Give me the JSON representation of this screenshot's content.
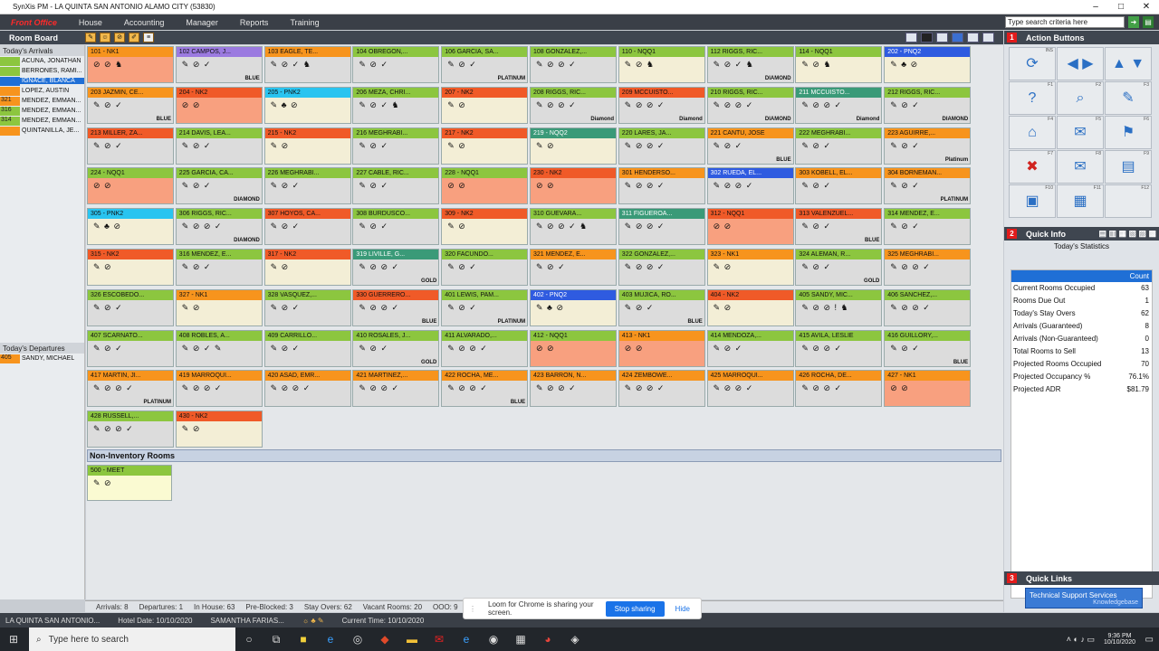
{
  "window": {
    "title": "SynXis PM - LA QUINTA SAN ANTONIO ALAMO CITY (53830)"
  },
  "menu": [
    "Front Office",
    "House",
    "Accounting",
    "Manager",
    "Reports",
    "Training"
  ],
  "search": {
    "placeholder": "Type search criteria here"
  },
  "room_board": {
    "label": "Room Board"
  },
  "arrivals": {
    "label": "Today's Arrivals",
    "items": [
      {
        "code": "",
        "name": "ACUÑA, JONATHAN",
        "color": "#8cc63f"
      },
      {
        "code": "",
        "name": "BERRONES, RAMI...",
        "color": "#8cc63f"
      },
      {
        "code": "",
        "name": "IGNACE, BLANCA",
        "color": "#1f6fd6"
      },
      {
        "code": "",
        "name": "LOPEZ, AUSTIN",
        "color": "#f7941d"
      },
      {
        "code": "321",
        "name": "MENDEZ, EMMAN...",
        "color": "#f7941d"
      },
      {
        "code": "316",
        "name": "MENDEZ, EMMAN...",
        "color": "#8cc63f"
      },
      {
        "code": "314",
        "name": "MENDEZ, EMMAN...",
        "color": "#8cc63f"
      },
      {
        "code": "",
        "name": "QUINTANILLA, JE...",
        "color": "#f7941d"
      }
    ]
  },
  "departures": {
    "label": "Today's Departures",
    "items": [
      {
        "code": "405",
        "name": "SANDY, MICHAEL"
      }
    ]
  },
  "rooms": [
    {
      "h": "101 - NK1",
      "hc": "orange",
      "bc": "bsalmon",
      "icons": "⊘ ⊘ ♞",
      "t": ""
    },
    {
      "h": "102   CAMPOS, J...",
      "hc": "purple",
      "bc": "bgray",
      "icons": "✎ ⊘ ✓",
      "t": "BLUE"
    },
    {
      "h": "103   EAGLE, TE...",
      "hc": "orange",
      "bc": "bgray",
      "icons": "✎ ⊘ ✓ ♞",
      "t": ""
    },
    {
      "h": "104   OBREGON,...",
      "hc": "green",
      "bc": "bgray",
      "icons": "✎ ⊘ ✓",
      "t": ""
    },
    {
      "h": "106   GARCIA, SA...",
      "hc": "green",
      "bc": "bgray",
      "icons": "✎ ⊘ ✓",
      "t": "PLATINUM"
    },
    {
      "h": "108   GONZALEZ,...",
      "hc": "green",
      "bc": "bgray",
      "icons": "✎ ⊘ ⊘ ✓",
      "t": ""
    },
    {
      "h": "110 - NQQ1",
      "hc": "green",
      "bc": "bcream",
      "icons": "✎ ⊘ ♞",
      "t": ""
    },
    {
      "h": "112   RIGGS, RIC...",
      "hc": "green",
      "bc": "bgray",
      "icons": "✎ ⊘ ✓ ♞",
      "t": "DIAMOND"
    },
    {
      "h": "114 - NQQ1",
      "hc": "green",
      "bc": "bcream",
      "icons": "✎ ⊘ ♞",
      "t": ""
    },
    {
      "h": "202 - PNQ2",
      "hc": "blue",
      "bc": "bcream",
      "icons": "✎ ♣ ⊘",
      "t": ""
    },
    {
      "h": "203   JAZMIN, CE...",
      "hc": "orange",
      "bc": "bgray",
      "icons": "✎ ⊘ ✓",
      "t": "BLUE"
    },
    {
      "h": "204 - NK2",
      "hc": "red",
      "bc": "bsalmon",
      "icons": "⊘ ⊘",
      "t": ""
    },
    {
      "h": "205 - PNK2",
      "hc": "cyan",
      "bc": "bcream",
      "icons": "✎ ♣ ⊘",
      "t": ""
    },
    {
      "h": "206   MEZA, CHRI...",
      "hc": "green",
      "bc": "bgray",
      "icons": "✎ ⊘ ✓ ♞",
      "t": ""
    },
    {
      "h": "207 - NK2",
      "hc": "red",
      "bc": "bcream",
      "icons": "✎ ⊘",
      "t": ""
    },
    {
      "h": "208   RIGGS, RIC...",
      "hc": "green",
      "bc": "bgray",
      "icons": "✎ ⊘ ⊘ ✓",
      "t": "Diamond"
    },
    {
      "h": "209   MCCUISTO...",
      "hc": "red",
      "bc": "bgray",
      "icons": "✎ ⊘ ⊘ ✓",
      "t": "Diamond"
    },
    {
      "h": "210   RIGGS, RIC...",
      "hc": "green",
      "bc": "bgray",
      "icons": "✎ ⊘ ⊘ ✓",
      "t": "DIAMOND"
    },
    {
      "h": "211   MCCUISTO...",
      "hc": "teal",
      "bc": "bgray",
      "icons": "✎ ⊘ ⊘ ✓",
      "t": "Diamond"
    },
    {
      "h": "212   RIGGS, RIC...",
      "hc": "green",
      "bc": "bgray",
      "icons": "✎ ⊘ ✓",
      "t": "DIAMOND"
    },
    {
      "h": "213   MILLER, ZA...",
      "hc": "red",
      "bc": "bgray",
      "icons": "✎ ⊘ ✓",
      "t": ""
    },
    {
      "h": "214   DAVIS, LEA...",
      "hc": "green",
      "bc": "bgray",
      "icons": "✎ ⊘ ✓",
      "t": ""
    },
    {
      "h": "215 - NK2",
      "hc": "red",
      "bc": "bcream",
      "icons": "✎ ⊘",
      "t": ""
    },
    {
      "h": "216   MEGHRABI...",
      "hc": "green",
      "bc": "bgray",
      "icons": "✎ ⊘ ✓",
      "t": ""
    },
    {
      "h": "217 - NK2",
      "hc": "red",
      "bc": "bcream",
      "icons": "✎ ⊘",
      "t": ""
    },
    {
      "h": "219 - NQQ2",
      "hc": "teal",
      "bc": "bcream",
      "icons": "✎ ⊘",
      "t": ""
    },
    {
      "h": "220   LARES, JA...",
      "hc": "green",
      "bc": "bgray",
      "icons": "✎ ⊘ ⊘ ✓",
      "t": ""
    },
    {
      "h": "221   CANTU, JOSE",
      "hc": "orange",
      "bc": "bgray",
      "icons": "✎ ⊘ ✓",
      "t": "BLUE"
    },
    {
      "h": "222   MEGHRABI...",
      "hc": "green",
      "bc": "bgray",
      "icons": "✎ ⊘ ✓",
      "t": ""
    },
    {
      "h": "223   AGUIRRE,...",
      "hc": "orange",
      "bc": "bgray",
      "icons": "✎ ⊘ ✓",
      "t": "Platinum"
    },
    {
      "h": "224 - NQQ1",
      "hc": "green",
      "bc": "bsalmon",
      "icons": "⊘ ⊘",
      "t": ""
    },
    {
      "h": "225   GARCIA, CA...",
      "hc": "green",
      "bc": "bgray",
      "icons": "✎ ⊘ ✓",
      "t": "DIAMOND"
    },
    {
      "h": "226   MEGHRABI...",
      "hc": "green",
      "bc": "bgray",
      "icons": "✎ ⊘ ✓",
      "t": ""
    },
    {
      "h": "227   CABLE, RIC...",
      "hc": "green",
      "bc": "bgray",
      "icons": "✎ ⊘ ✓",
      "t": ""
    },
    {
      "h": "228 - NQQ1",
      "hc": "green",
      "bc": "bsalmon",
      "icons": "⊘ ⊘",
      "t": ""
    },
    {
      "h": "230 - NK2",
      "hc": "red",
      "bc": "bsalmon",
      "icons": "⊘ ⊘",
      "t": ""
    },
    {
      "h": "301   HENDERSO...",
      "hc": "orange",
      "bc": "bgray",
      "icons": "✎ ⊘ ⊘ ✓",
      "t": ""
    },
    {
      "h": "302   RUEDA, EL...",
      "hc": "blue",
      "bc": "bgray",
      "icons": "✎ ⊘ ⊘ ✓",
      "t": ""
    },
    {
      "h": "303   KOBELL, EL...",
      "hc": "orange",
      "bc": "bgray",
      "icons": "✎ ⊘ ✓",
      "t": ""
    },
    {
      "h": "304   BORNEMAN...",
      "hc": "orange",
      "bc": "bgray",
      "icons": "✎ ⊘ ✓",
      "t": "PLATINUM"
    },
    {
      "h": "305 - PNK2",
      "hc": "cyan",
      "bc": "bcream",
      "icons": "✎ ♣ ⊘",
      "t": ""
    },
    {
      "h": "306   RIGGS, RIC...",
      "hc": "green",
      "bc": "bgray",
      "icons": "✎ ⊘ ⊘ ✓",
      "t": "DIAMOND"
    },
    {
      "h": "307   HOYOS, CA...",
      "hc": "red",
      "bc": "bgray",
      "icons": "✎ ⊘ ✓",
      "t": ""
    },
    {
      "h": "308   BURDUSCO...",
      "hc": "green",
      "bc": "bgray",
      "icons": "✎ ⊘ ✓",
      "t": ""
    },
    {
      "h": "309 - NK2",
      "hc": "red",
      "bc": "bcream",
      "icons": "✎ ⊘",
      "t": ""
    },
    {
      "h": "310   GUEVARA...",
      "hc": "green",
      "bc": "bgray",
      "icons": "✎ ⊘ ⊘ ✓ ♞",
      "t": ""
    },
    {
      "h": "311   FIGUEROA...",
      "hc": "teal",
      "bc": "bgray",
      "icons": "✎ ⊘ ⊘ ✓",
      "t": ""
    },
    {
      "h": "312 - NQQ1",
      "hc": "red",
      "bc": "bsalmon",
      "icons": "⊘ ⊘",
      "t": ""
    },
    {
      "h": "313   VALENZUEL...",
      "hc": "red",
      "bc": "bgray",
      "icons": "✎ ⊘ ✓",
      "t": "BLUE"
    },
    {
      "h": "314   MENDEZ, E...",
      "hc": "green",
      "bc": "bgray",
      "icons": "✎ ⊘ ✓",
      "t": ""
    },
    {
      "h": "315 - NK2",
      "hc": "red",
      "bc": "bcream",
      "icons": "✎ ⊘",
      "t": ""
    },
    {
      "h": "316   MENDEZ, E...",
      "hc": "green",
      "bc": "bgray",
      "icons": "✎ ⊘ ✓",
      "t": ""
    },
    {
      "h": "317 - NK2",
      "hc": "red",
      "bc": "bcream",
      "icons": "✎ ⊘",
      "t": ""
    },
    {
      "h": "319   LIVILLE, G...",
      "hc": "teal",
      "bc": "bgray",
      "icons": "✎ ⊘ ⊘ ✓",
      "t": "GOLD"
    },
    {
      "h": "320   FACUNDO...",
      "hc": "green",
      "bc": "bgray",
      "icons": "✎ ⊘ ✓",
      "t": ""
    },
    {
      "h": "321   MENDEZ, E...",
      "hc": "orange",
      "bc": "bgray",
      "icons": "✎ ⊘ ✓",
      "t": ""
    },
    {
      "h": "322   GONZALEZ,...",
      "hc": "green",
      "bc": "bgray",
      "icons": "✎ ⊘ ⊘ ✓",
      "t": ""
    },
    {
      "h": "323 - NK1",
      "hc": "orange",
      "bc": "bcream",
      "icons": "✎ ⊘",
      "t": ""
    },
    {
      "h": "324   ALEMAN, R...",
      "hc": "green",
      "bc": "bgray",
      "icons": "✎ ⊘ ✓",
      "t": "GOLD"
    },
    {
      "h": "325   MEGHRABI...",
      "hc": "orange",
      "bc": "bgray",
      "icons": "✎ ⊘ ⊘ ✓",
      "t": ""
    },
    {
      "h": "326   ESCOBEDO...",
      "hc": "green",
      "bc": "bgray",
      "icons": "✎ ⊘ ✓",
      "t": ""
    },
    {
      "h": "327 - NK1",
      "hc": "orange",
      "bc": "bcream",
      "icons": "✎ ⊘",
      "t": ""
    },
    {
      "h": "328   VASQUEZ,...",
      "hc": "green",
      "bc": "bgray",
      "icons": "✎ ⊘ ✓",
      "t": ""
    },
    {
      "h": "330   GUERRERO...",
      "hc": "red",
      "bc": "bgray",
      "icons": "✎ ⊘ ⊘ ✓",
      "t": "BLUE"
    },
    {
      "h": "401   LEWIS, PAM...",
      "hc": "green",
      "bc": "bgray",
      "icons": "✎ ⊘ ✓",
      "t": "PLATINUM"
    },
    {
      "h": "402 - PNQ2",
      "hc": "blue",
      "bc": "bcream",
      "icons": "✎ ♣ ⊘",
      "t": ""
    },
    {
      "h": "403   MUJICA, RO...",
      "hc": "green",
      "bc": "bgray",
      "icons": "✎ ⊘ ✓",
      "t": "BLUE"
    },
    {
      "h": "404 - NK2",
      "hc": "red",
      "bc": "bcream",
      "icons": "✎ ⊘",
      "t": ""
    },
    {
      "h": "405   SANDY, MIC...",
      "hc": "green",
      "bc": "bgray",
      "icons": "✎ ⊘ ⊘ ! ♞",
      "t": ""
    },
    {
      "h": "406   SANCHEZ,...",
      "hc": "green",
      "bc": "bgray",
      "icons": "✎ ⊘ ⊘ ✓",
      "t": ""
    },
    {
      "h": "407   SCARNATO...",
      "hc": "green",
      "bc": "bgray",
      "icons": "✎ ⊘ ✓",
      "t": ""
    },
    {
      "h": "408   ROBLES, A...",
      "hc": "green",
      "bc": "bgray",
      "icons": "✎ ⊘ ✓ ✎",
      "t": ""
    },
    {
      "h": "409   CARRILLO...",
      "hc": "green",
      "bc": "bgray",
      "icons": "✎ ⊘ ✓",
      "t": ""
    },
    {
      "h": "410   ROSALES, J...",
      "hc": "green",
      "bc": "bgray",
      "icons": "✎ ⊘ ✓",
      "t": "GOLD"
    },
    {
      "h": "411   ALVARADO,...",
      "hc": "green",
      "bc": "bgray",
      "icons": "✎ ⊘ ⊘ ✓",
      "t": ""
    },
    {
      "h": "412 - NQQ1",
      "hc": "green",
      "bc": "bsalmon",
      "icons": "⊘ ⊘",
      "t": ""
    },
    {
      "h": "413 - NK1",
      "hc": "orange",
      "bc": "bsalmon",
      "icons": "⊘ ⊘",
      "t": ""
    },
    {
      "h": "414   MENDOZA,...",
      "hc": "green",
      "bc": "bgray",
      "icons": "✎ ⊘ ✓",
      "t": ""
    },
    {
      "h": "415   AVILA, LESLIE",
      "hc": "green",
      "bc": "bgray",
      "icons": "✎ ⊘ ⊘ ✓",
      "t": ""
    },
    {
      "h": "416   GUILLORY,...",
      "hc": "green",
      "bc": "bgray",
      "icons": "✎ ⊘ ✓",
      "t": "BLUE"
    },
    {
      "h": "417   MARTIN, JI...",
      "hc": "orange",
      "bc": "bgray",
      "icons": "✎ ⊘ ⊘ ✓",
      "t": "PLATINUM"
    },
    {
      "h": "419   MARROQUI...",
      "hc": "orange",
      "bc": "bgray",
      "icons": "✎ ⊘ ⊘ ✓",
      "t": ""
    },
    {
      "h": "420   ASAD, EMR...",
      "hc": "orange",
      "bc": "bgray",
      "icons": "✎ ⊘ ⊘ ✓",
      "t": ""
    },
    {
      "h": "421   MARTINEZ,...",
      "hc": "orange",
      "bc": "bgray",
      "icons": "✎ ⊘ ⊘ ✓",
      "t": ""
    },
    {
      "h": "422   ROCHA, ME...",
      "hc": "orange",
      "bc": "bgray",
      "icons": "✎ ⊘ ⊘ ✓",
      "t": "BLUE"
    },
    {
      "h": "423   BARRON, N...",
      "hc": "orange",
      "bc": "bgray",
      "icons": "✎ ⊘ ⊘ ✓",
      "t": ""
    },
    {
      "h": "424   ZEMBOWE...",
      "hc": "orange",
      "bc": "bgray",
      "icons": "✎ ⊘ ⊘ ✓",
      "t": ""
    },
    {
      "h": "425   MARROQUI...",
      "hc": "orange",
      "bc": "bgray",
      "icons": "✎ ⊘ ⊘ ✓",
      "t": ""
    },
    {
      "h": "426   ROCHA, DE...",
      "hc": "orange",
      "bc": "bgray",
      "icons": "✎ ⊘ ⊘ ✓",
      "t": ""
    },
    {
      "h": "427 - NK1",
      "hc": "orange",
      "bc": "bsalmon",
      "icons": "⊘ ⊘",
      "t": ""
    },
    {
      "h": "428   RUSSELL,...",
      "hc": "green",
      "bc": "bgray",
      "icons": "✎ ⊘ ⊘ ✓",
      "t": ""
    },
    {
      "h": "430 - NK2",
      "hc": "red",
      "bc": "bcream",
      "icons": "✎ ⊘",
      "t": ""
    }
  ],
  "non_inventory": {
    "label": "Non-Inventory Rooms",
    "room": {
      "h": "500 - MEET",
      "icons": "✎ ⊘"
    }
  },
  "status": [
    "Arrivals: 8",
    "Departures: 1",
    "In House: 63",
    "Pre-Blocked: 3",
    "Stay Overs: 62",
    "Vacant Rooms: 20",
    "OOO: 9"
  ],
  "footer": {
    "property": "LA QUINTA SAN ANTONIO...",
    "hotel_date": "Hotel Date: 10/10/2020",
    "user": "SAMANTHA FARIAS...",
    "current_time": "Current Time: 10/10/2020"
  },
  "loom": {
    "message": "Loom for Chrome is sharing your screen.",
    "stop": "Stop sharing",
    "hide": "Hide"
  },
  "right": {
    "action_buttons": {
      "num": "1",
      "label": "Action Buttons",
      "buttons": [
        {
          "icon": "⟳",
          "key": "INS"
        },
        {
          "icon": "◀ ▶",
          "key": ""
        },
        {
          "icon": "▲ ▼",
          "key": ""
        },
        {
          "icon": "?",
          "key": "F1"
        },
        {
          "icon": "⌕",
          "key": "F2"
        },
        {
          "icon": "✎",
          "key": "F3"
        },
        {
          "icon": "⌂",
          "key": "F4"
        },
        {
          "icon": "✉",
          "key": "F5"
        },
        {
          "icon": "⚑",
          "key": "F6"
        },
        {
          "icon": "✖",
          "key": "F7"
        },
        {
          "icon": "✉",
          "key": "F8"
        },
        {
          "icon": "▤",
          "key": "F9"
        },
        {
          "icon": "▣",
          "key": "F10"
        },
        {
          "icon": "▦",
          "key": "F11"
        },
        {
          "icon": "",
          "key": "F12"
        }
      ]
    },
    "quick_info": {
      "num": "2",
      "label": "Quick Info",
      "subtitle": "Today's Statistics",
      "count_label": "Count",
      "stats": [
        {
          "label": "Current Rooms Occupied",
          "value": "63"
        },
        {
          "label": "Rooms Due Out",
          "value": "1"
        },
        {
          "label": "Today's Stay Overs",
          "value": "62"
        },
        {
          "label": "Arrivals (Guaranteed)",
          "value": "8"
        },
        {
          "label": "Arrivals (Non-Guaranteed)",
          "value": "0"
        },
        {
          "label": "Total Rooms to Sell",
          "value": "13"
        },
        {
          "label": "Projected Rooms Occupied",
          "value": "70"
        },
        {
          "label": "Projected Occupancy %",
          "value": "76.1%"
        },
        {
          "label": "Projected ADR",
          "value": "$81.79"
        }
      ]
    },
    "quick_links": {
      "num": "3",
      "label": "Quick Links",
      "link": "Technical Support Services",
      "sub": "Knowledgebase"
    }
  },
  "taskbar": {
    "search": "Type here to search",
    "time": "9:36 PM",
    "date": "10/10/2020"
  }
}
